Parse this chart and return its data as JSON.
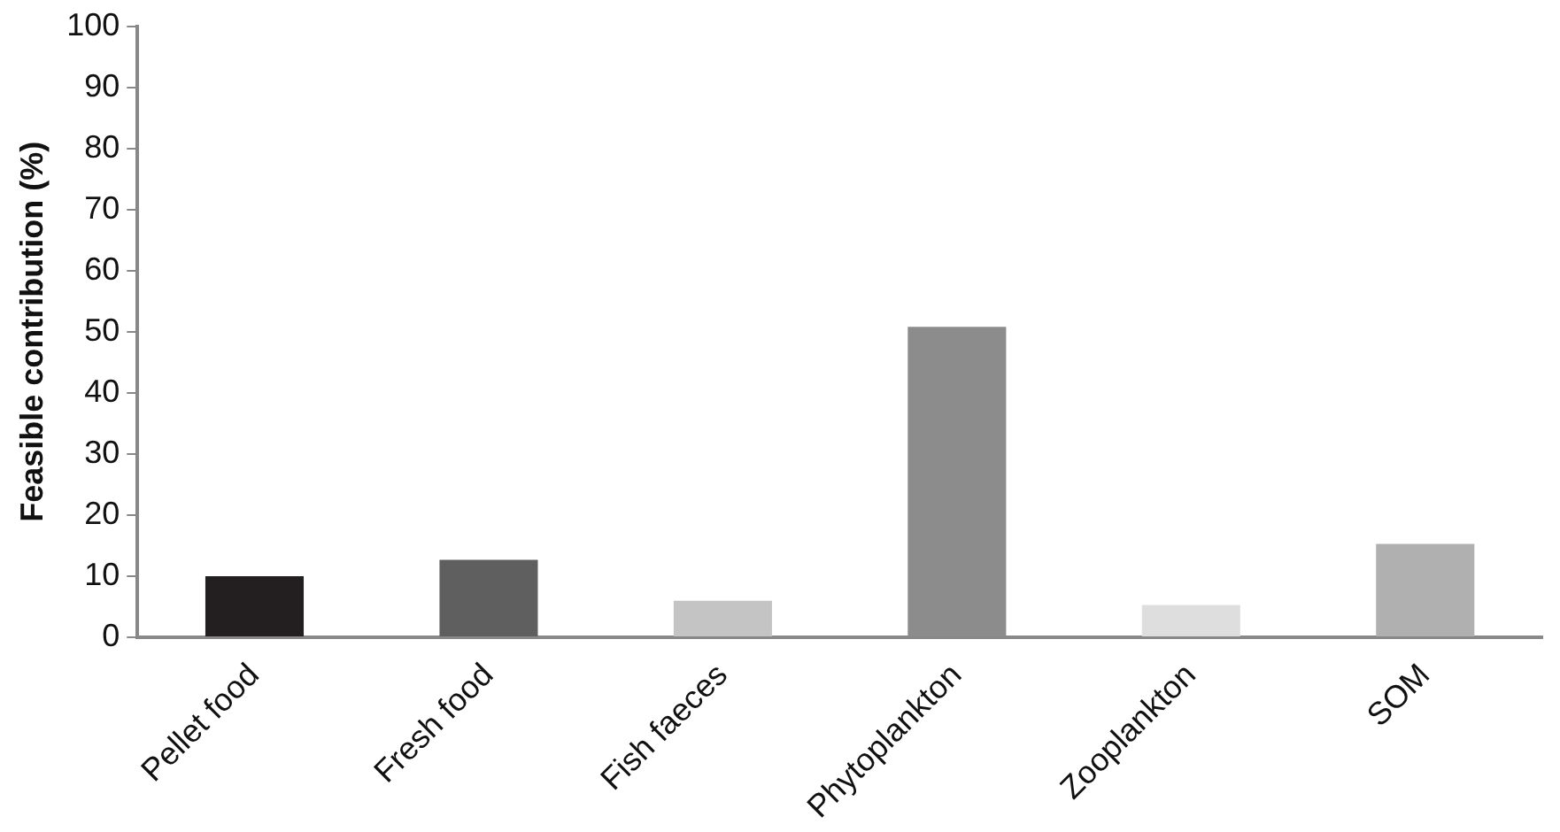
{
  "chart_data": {
    "type": "bar",
    "ylabel": "Feasible contribution (%)",
    "categories": [
      "Pellet food",
      "Fresh food",
      "Fish faeces",
      "Phytoplankton",
      "Zooplankton",
      "SOM"
    ],
    "values": [
      10,
      12.7,
      6,
      50.8,
      5.3,
      15.3
    ],
    "colors": [
      "#231f20",
      "#5f5f5f",
      "#c4c4c4",
      "#8c8c8c",
      "#dedede",
      "#b0b0b0"
    ],
    "ylim": [
      0,
      100
    ],
    "yticks": [
      0,
      10,
      20,
      30,
      40,
      50,
      60,
      70,
      80,
      90,
      100
    ],
    "grid": false,
    "legend": false
  }
}
